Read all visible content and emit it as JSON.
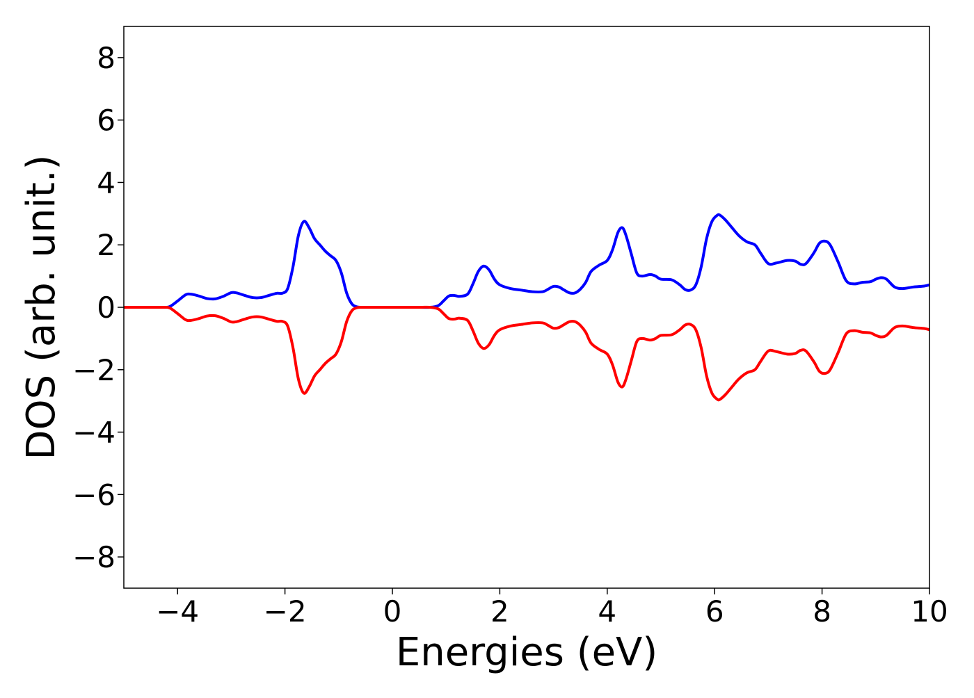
{
  "chart_data": {
    "type": "line",
    "title": "",
    "xlabel": "Energies (eV)",
    "ylabel": "DOS (arb. unit.)",
    "xlim": [
      -5,
      10
    ],
    "ylim": [
      -9,
      9
    ],
    "xticks": [
      -4,
      -2,
      0,
      2,
      4,
      6,
      8,
      10
    ],
    "yticks": [
      -8,
      -6,
      -4,
      -2,
      0,
      2,
      4,
      6,
      8
    ],
    "xtick_labels": [
      "−4",
      "−2",
      "0",
      "2",
      "4",
      "6",
      "8",
      "10"
    ],
    "ytick_labels": [
      "−8",
      "−6",
      "−4",
      "−2",
      "0",
      "2",
      "4",
      "6",
      "8"
    ],
    "grid": false,
    "legend": "none",
    "series": [
      {
        "color": "#0000ff",
        "x": [
          -5.0,
          -4.3,
          -4.15,
          -4.0,
          -3.85,
          -3.75,
          -3.6,
          -3.45,
          -3.3,
          -3.15,
          -3.0,
          -2.9,
          -2.75,
          -2.6,
          -2.45,
          -2.3,
          -2.15,
          -2.05,
          -1.95,
          -1.85,
          -1.75,
          -1.65,
          -1.55,
          -1.45,
          -1.35,
          -1.25,
          -1.15,
          -1.05,
          -0.95,
          -0.85,
          -0.75,
          -0.65,
          -0.55,
          -0.4,
          0.0,
          0.5,
          0.7,
          0.85,
          0.95,
          1.05,
          1.15,
          1.25,
          1.4,
          1.5,
          1.6,
          1.7,
          1.8,
          1.9,
          2.0,
          2.2,
          2.4,
          2.6,
          2.8,
          2.9,
          3.0,
          3.1,
          3.2,
          3.3,
          3.4,
          3.5,
          3.6,
          3.7,
          3.85,
          4.0,
          4.1,
          4.2,
          4.28,
          4.35,
          4.45,
          4.55,
          4.65,
          4.8,
          4.9,
          5.0,
          5.2,
          5.35,
          5.45,
          5.55,
          5.65,
          5.75,
          5.85,
          5.95,
          6.05,
          6.1,
          6.2,
          6.3,
          6.45,
          6.6,
          6.75,
          6.85,
          7.0,
          7.15,
          7.35,
          7.5,
          7.6,
          7.7,
          7.85,
          7.95,
          8.05,
          8.15,
          8.3,
          8.45,
          8.6,
          8.75,
          8.9,
          9.0,
          9.1,
          9.2,
          9.35,
          9.5,
          9.7,
          9.9,
          10.0
        ],
        "y": [
          0.0,
          0.0,
          0.02,
          0.2,
          0.4,
          0.42,
          0.36,
          0.28,
          0.27,
          0.35,
          0.47,
          0.46,
          0.38,
          0.31,
          0.31,
          0.38,
          0.45,
          0.45,
          0.6,
          1.3,
          2.3,
          2.75,
          2.55,
          2.2,
          2.0,
          1.8,
          1.65,
          1.5,
          1.1,
          0.45,
          0.1,
          0.01,
          0.0,
          0.0,
          0.0,
          0.0,
          0.0,
          0.05,
          0.2,
          0.36,
          0.38,
          0.35,
          0.42,
          0.75,
          1.15,
          1.32,
          1.2,
          0.9,
          0.72,
          0.6,
          0.55,
          0.5,
          0.5,
          0.58,
          0.67,
          0.65,
          0.55,
          0.46,
          0.46,
          0.58,
          0.8,
          1.15,
          1.35,
          1.5,
          1.85,
          2.4,
          2.55,
          2.3,
          1.7,
          1.1,
          1.0,
          1.05,
          1.0,
          0.9,
          0.88,
          0.72,
          0.57,
          0.55,
          0.72,
          1.3,
          2.2,
          2.75,
          2.95,
          2.95,
          2.8,
          2.6,
          2.3,
          2.1,
          2.0,
          1.75,
          1.4,
          1.42,
          1.5,
          1.48,
          1.38,
          1.4,
          1.75,
          2.05,
          2.12,
          2.0,
          1.45,
          0.85,
          0.75,
          0.8,
          0.82,
          0.9,
          0.95,
          0.9,
          0.65,
          0.6,
          0.65,
          0.68,
          0.72
        ]
      },
      {
        "color": "#ff0000",
        "x": [
          -5.0,
          -4.3,
          -4.15,
          -4.0,
          -3.85,
          -3.75,
          -3.6,
          -3.45,
          -3.3,
          -3.15,
          -3.0,
          -2.9,
          -2.75,
          -2.6,
          -2.45,
          -2.3,
          -2.15,
          -2.05,
          -1.95,
          -1.85,
          -1.75,
          -1.65,
          -1.55,
          -1.45,
          -1.35,
          -1.25,
          -1.15,
          -1.05,
          -0.95,
          -0.85,
          -0.75,
          -0.65,
          -0.55,
          -0.4,
          0.0,
          0.5,
          0.7,
          0.85,
          0.95,
          1.05,
          1.15,
          1.25,
          1.4,
          1.5,
          1.6,
          1.7,
          1.8,
          1.9,
          2.0,
          2.2,
          2.4,
          2.6,
          2.8,
          2.9,
          3.0,
          3.1,
          3.2,
          3.3,
          3.4,
          3.5,
          3.6,
          3.7,
          3.85,
          4.0,
          4.1,
          4.2,
          4.28,
          4.35,
          4.45,
          4.55,
          4.65,
          4.8,
          4.9,
          5.0,
          5.2,
          5.35,
          5.45,
          5.55,
          5.65,
          5.75,
          5.85,
          5.95,
          6.05,
          6.1,
          6.2,
          6.3,
          6.45,
          6.6,
          6.75,
          6.85,
          7.0,
          7.15,
          7.35,
          7.5,
          7.6,
          7.7,
          7.85,
          7.95,
          8.05,
          8.15,
          8.3,
          8.45,
          8.6,
          8.75,
          8.9,
          9.0,
          9.1,
          9.2,
          9.35,
          9.5,
          9.7,
          9.9,
          10.0
        ],
        "y": [
          0.0,
          0.0,
          -0.02,
          -0.2,
          -0.4,
          -0.42,
          -0.36,
          -0.28,
          -0.27,
          -0.35,
          -0.47,
          -0.46,
          -0.38,
          -0.31,
          -0.31,
          -0.38,
          -0.45,
          -0.45,
          -0.6,
          -1.3,
          -2.3,
          -2.75,
          -2.55,
          -2.2,
          -2.0,
          -1.8,
          -1.65,
          -1.5,
          -1.1,
          -0.45,
          -0.1,
          -0.01,
          0.0,
          0.0,
          0.0,
          0.0,
          0.0,
          -0.05,
          -0.2,
          -0.36,
          -0.38,
          -0.35,
          -0.42,
          -0.75,
          -1.15,
          -1.32,
          -1.2,
          -0.9,
          -0.72,
          -0.6,
          -0.55,
          -0.5,
          -0.5,
          -0.58,
          -0.67,
          -0.65,
          -0.55,
          -0.46,
          -0.46,
          -0.58,
          -0.8,
          -1.15,
          -1.35,
          -1.5,
          -1.85,
          -2.4,
          -2.55,
          -2.3,
          -1.7,
          -1.1,
          -1.0,
          -1.05,
          -1.0,
          -0.9,
          -0.88,
          -0.72,
          -0.57,
          -0.55,
          -0.72,
          -1.3,
          -2.2,
          -2.75,
          -2.95,
          -2.95,
          -2.8,
          -2.6,
          -2.3,
          -2.1,
          -2.0,
          -1.75,
          -1.4,
          -1.42,
          -1.5,
          -1.48,
          -1.38,
          -1.4,
          -1.75,
          -2.05,
          -2.12,
          -2.0,
          -1.45,
          -0.85,
          -0.75,
          -0.8,
          -0.82,
          -0.9,
          -0.95,
          -0.9,
          -0.65,
          -0.6,
          -0.65,
          -0.68,
          -0.72
        ]
      }
    ]
  }
}
